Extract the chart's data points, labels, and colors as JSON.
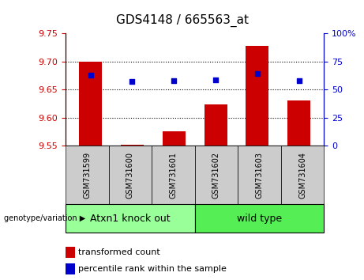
{
  "title": "GDS4148 / 665563_at",
  "samples": [
    "GSM731599",
    "GSM731600",
    "GSM731601",
    "GSM731602",
    "GSM731603",
    "GSM731604"
  ],
  "bar_values": [
    9.7,
    9.552,
    9.575,
    9.623,
    9.728,
    9.63
  ],
  "bar_bottom": 9.55,
  "percentile_values": [
    63,
    57,
    58,
    59,
    64,
    58
  ],
  "left_ylim": [
    9.55,
    9.75
  ],
  "left_yticks": [
    9.55,
    9.6,
    9.65,
    9.7,
    9.75
  ],
  "right_ylim": [
    0,
    100
  ],
  "right_yticks": [
    0,
    25,
    50,
    75,
    100
  ],
  "right_yticklabels": [
    "0",
    "25",
    "50",
    "75",
    "100%"
  ],
  "bar_color": "#cc0000",
  "dot_color": "#0000cc",
  "groups": [
    {
      "label": "Atxn1 knock out",
      "samples": [
        0,
        1,
        2
      ],
      "color": "#99ff99"
    },
    {
      "label": "wild type",
      "samples": [
        3,
        4,
        5
      ],
      "color": "#55ee55"
    }
  ],
  "group_label": "genotype/variation",
  "legend_items": [
    {
      "color": "#cc0000",
      "label": "transformed count"
    },
    {
      "color": "#0000cc",
      "label": "percentile rank within the sample"
    }
  ],
  "bar_width": 0.55,
  "tick_label_color_left": "#cc0000",
  "tick_label_color_right": "#0000cc",
  "sample_box_color": "#cccccc",
  "title_fontsize": 11,
  "axis_tick_fontsize": 8,
  "sample_label_fontsize": 7,
  "group_label_fontsize": 9,
  "legend_fontsize": 8
}
